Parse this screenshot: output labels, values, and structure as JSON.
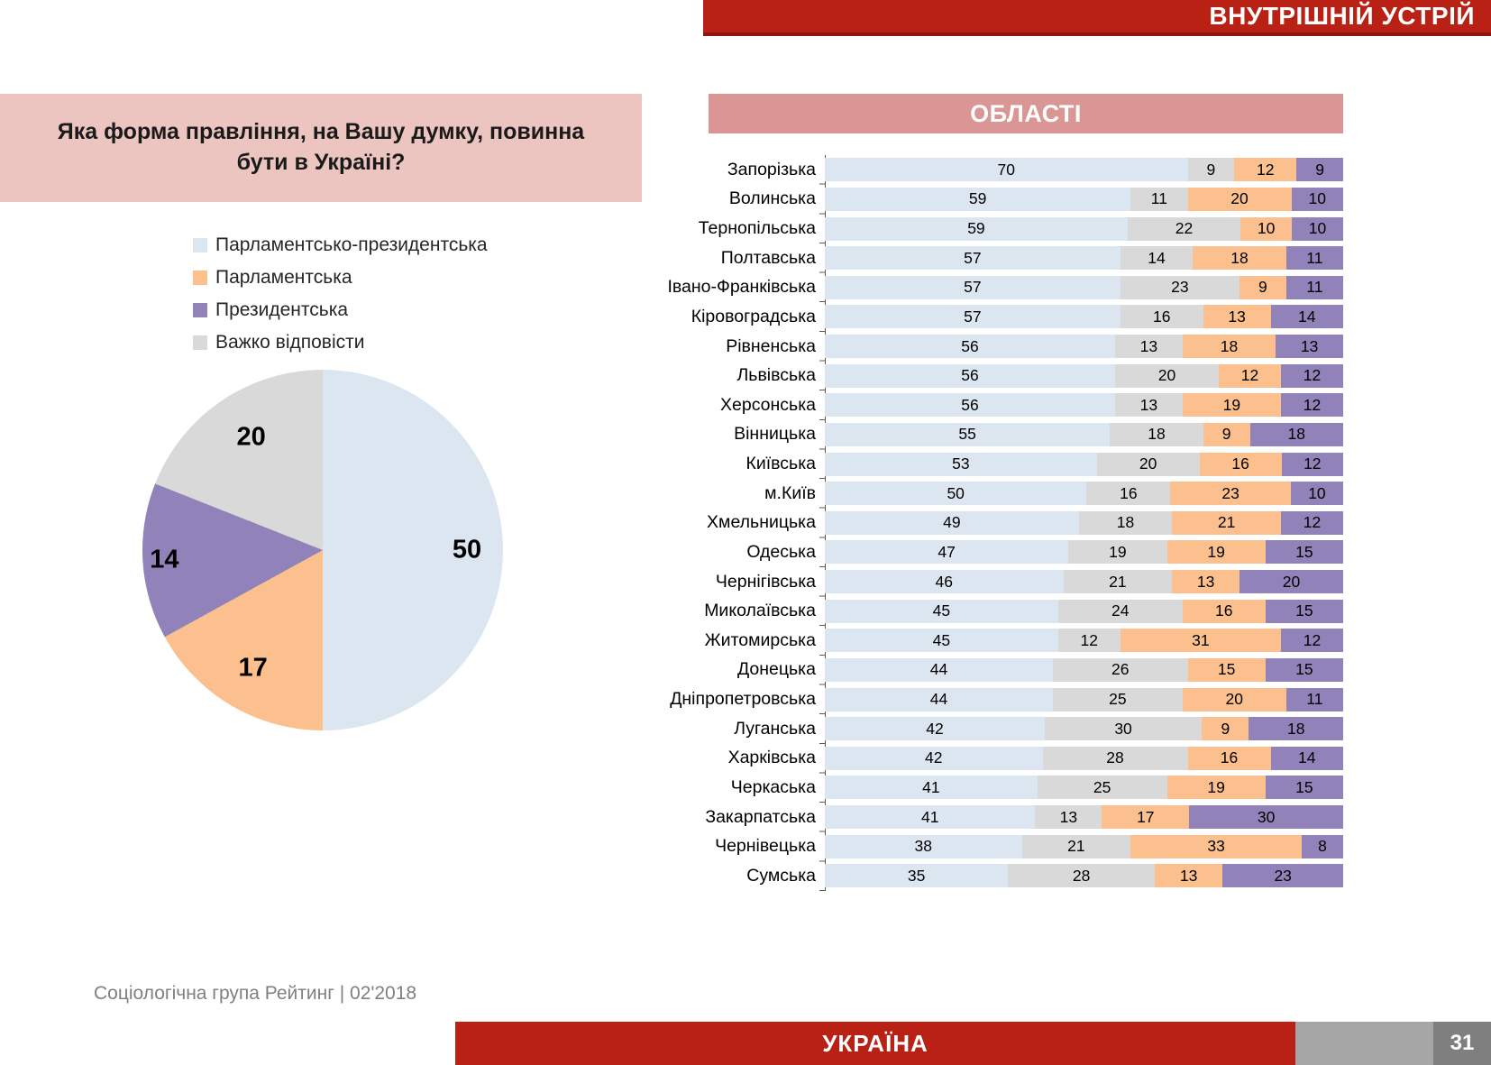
{
  "page": {
    "banner_title": "ВНУТРІШНІЙ УСТРІЙ",
    "footer_source": "Соціологічна група Рейтинг  |  02'2018",
    "footer_country": "УКРАЇНА",
    "page_number": "31"
  },
  "question": "Яка форма правління, на Вашу думку, повинна бути в Україні?",
  "colors": {
    "parliamentary_presidential": "#dce6f1",
    "parliamentary": "#fbc08d",
    "presidential": "#9282ba",
    "hard_to_say": "#d9d9d9",
    "banner_red": "#b82114",
    "header_salmon": "#d99694",
    "question_pink": "#ecc5c0"
  },
  "legend": [
    {
      "label": "Парламентсько-президентська",
      "color": "#dce6f1"
    },
    {
      "label": "Парламентська",
      "color": "#fbc08d"
    },
    {
      "label": "Президентська",
      "color": "#9282ba"
    },
    {
      "label": "Важко відповісти",
      "color": "#d9d9d9"
    }
  ],
  "chart_data": [
    {
      "type": "pie",
      "title": "Яка форма правління, на Вашу думку, повинна бути в Україні?",
      "labels": [
        "Парламентсько-президентська",
        "Парламентська",
        "Президентська",
        "Важко відповісти"
      ],
      "values": [
        50,
        17,
        14,
        20
      ],
      "colors": [
        "#dce6f1",
        "#fbc08d",
        "#9282ba",
        "#d9d9d9"
      ],
      "start": "top",
      "direction": "clockwise",
      "label_radius_factors": [
        0.8,
        0.76,
        0.88,
        0.74
      ]
    },
    {
      "type": "bar",
      "variant": "stacked-horizontal",
      "title": "ОБЛАСТІ",
      "xlim": [
        0,
        100
      ],
      "segment_order": [
        "Парламентсько-президентська",
        "Важко відповісти",
        "Парламентська",
        "Президентська"
      ],
      "segment_colors": [
        "#dce6f1",
        "#d9d9d9",
        "#fbc08d",
        "#9282ba"
      ],
      "categories": [
        "Запорізька",
        "Волинська",
        "Тернопільська",
        "Полтавська",
        "Івано-Франківська",
        "Кіровоградська",
        "Рівненська",
        "Львівська",
        "Херсонська",
        "Вінницька",
        "Київська",
        "м.Київ",
        "Хмельницька",
        "Одеська",
        "Чернігівська",
        "Миколаївська",
        "Житомирська",
        "Донецька",
        "Дніпропетровська",
        "Луганська",
        "Харківська",
        "Черкаська",
        "Закарпатська",
        "Чернівецька",
        "Сумська"
      ],
      "rows": [
        [
          70,
          9,
          12,
          9
        ],
        [
          59,
          11,
          20,
          10
        ],
        [
          59,
          22,
          10,
          10
        ],
        [
          57,
          14,
          18,
          11
        ],
        [
          57,
          23,
          9,
          11
        ],
        [
          57,
          16,
          13,
          14
        ],
        [
          56,
          13,
          18,
          13
        ],
        [
          56,
          20,
          12,
          12
        ],
        [
          56,
          13,
          19,
          12
        ],
        [
          55,
          18,
          9,
          18
        ],
        [
          53,
          20,
          16,
          12
        ],
        [
          50,
          16,
          23,
          10
        ],
        [
          49,
          18,
          21,
          12
        ],
        [
          47,
          19,
          19,
          15
        ],
        [
          46,
          21,
          13,
          20
        ],
        [
          45,
          24,
          16,
          15
        ],
        [
          45,
          12,
          31,
          12
        ],
        [
          44,
          26,
          15,
          15
        ],
        [
          44,
          25,
          20,
          11
        ],
        [
          42,
          30,
          9,
          18
        ],
        [
          42,
          28,
          16,
          14
        ],
        [
          41,
          25,
          19,
          15
        ],
        [
          41,
          13,
          17,
          30
        ],
        [
          38,
          21,
          33,
          8
        ],
        [
          35,
          28,
          13,
          23
        ]
      ]
    }
  ]
}
